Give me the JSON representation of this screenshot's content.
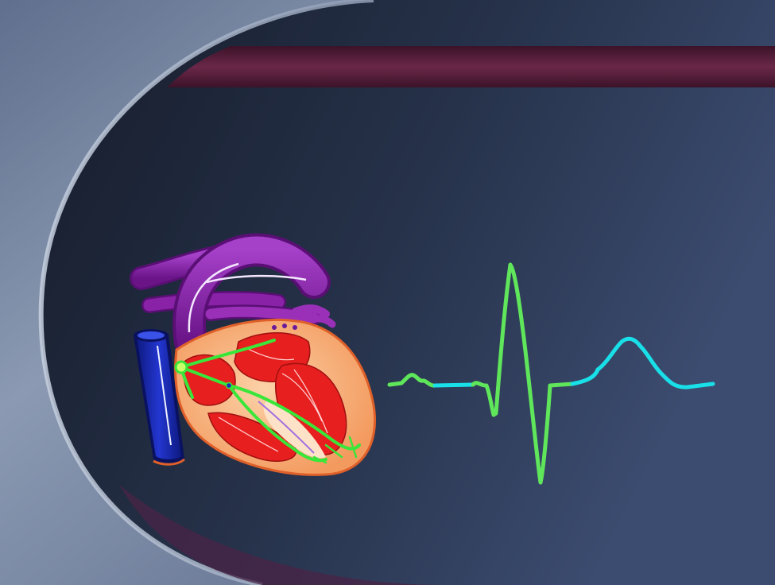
{
  "slide": {
    "colors": {
      "frame_light": "#8c9bb3",
      "frame_dark": "#3d4a64",
      "panel_dark": "#1d2535",
      "panel_light": "#3a4a6c",
      "band_maroon": "#5a1f3e",
      "band_gold": "#c9a94e"
    }
  },
  "heart": {
    "icon": "heart-conduction-system-icon",
    "colors": {
      "vena_cava": "#1a2bb8",
      "aorta": "#8a22a8",
      "myocardium": "#f9b483",
      "chambers": "#e81f1f",
      "conduction_path": "#39e639"
    }
  },
  "ecg": {
    "icon": "ecg-waveform-icon",
    "colors": {
      "wave": "#5fe65a",
      "segment": "#19e0e8"
    }
  }
}
